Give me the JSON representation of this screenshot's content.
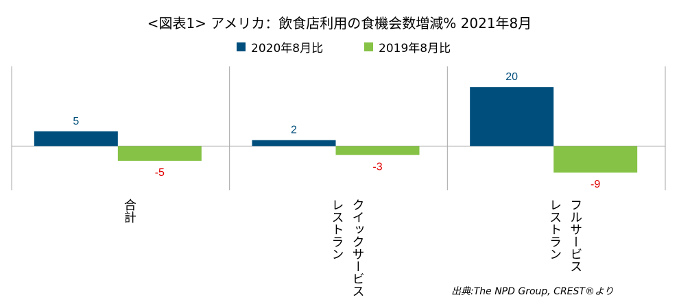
{
  "chart_data": {
    "type": "bar",
    "title": "<図表1> アメリカ：飲食店利用の食機会数増減% 2021年8月",
    "categories": [
      [
        "合計"
      ],
      [
        "クイックサービス",
        "レストラン"
      ],
      [
        "フルサービス",
        "レストラン"
      ]
    ],
    "series": [
      {
        "name": "2020年8月比",
        "values": [
          5,
          2,
          20
        ],
        "color": "#004E7C",
        "label_color": "#004E7C"
      },
      {
        "name": "2019年8月比",
        "values": [
          -5,
          -3,
          -9
        ],
        "color": "#86C246",
        "label_color": "#E00000"
      }
    ],
    "ylim": [
      -15,
      27
    ],
    "grid": false,
    "legend_position": "top-center",
    "source": "出典:The NPD Group, CREST®より"
  }
}
